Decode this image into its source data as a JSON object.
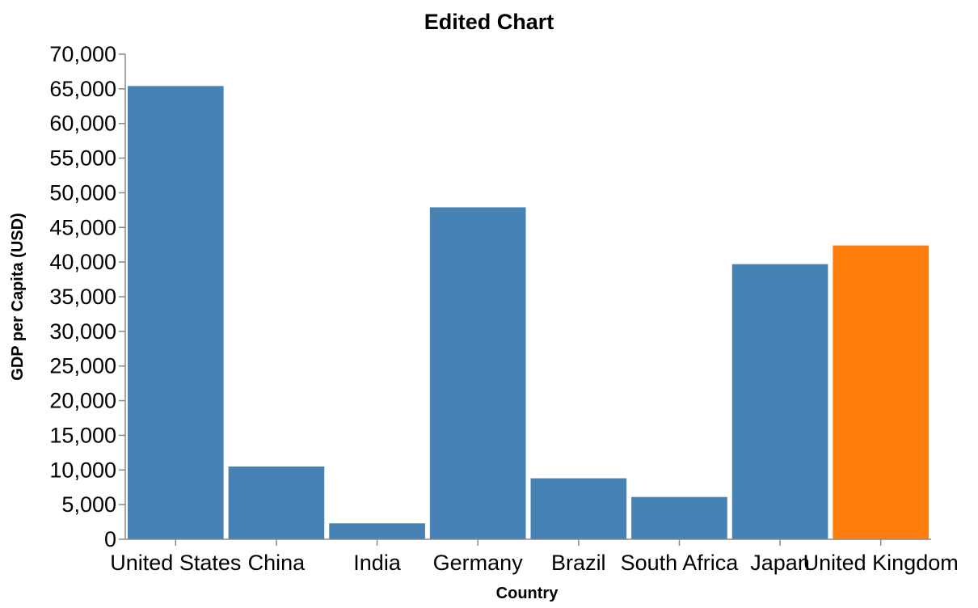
{
  "chart_data": {
    "type": "bar",
    "title": "Edited Chart",
    "xlabel": "Country",
    "ylabel": "GDP per Capita (USD)",
    "ylim": [
      0,
      70000
    ],
    "yticks": [
      0,
      5000,
      10000,
      15000,
      20000,
      25000,
      30000,
      35000,
      40000,
      45000,
      50000,
      55000,
      60000,
      65000,
      70000
    ],
    "ytick_labels": [
      "0",
      "5,000",
      "10,000",
      "15,000",
      "20,000",
      "25,000",
      "30,000",
      "35,000",
      "40,000",
      "45,000",
      "50,000",
      "55,000",
      "60,000",
      "65,000",
      "70,000"
    ],
    "categories": [
      "United States",
      "China",
      "India",
      "Germany",
      "Brazil",
      "South Africa",
      "Japan",
      "United Kingdom"
    ],
    "values": [
      65400,
      10500,
      2300,
      47900,
      8800,
      6100,
      39700,
      42400
    ],
    "colors": [
      "#4682b4",
      "#4682b4",
      "#4682b4",
      "#4682b4",
      "#4682b4",
      "#4682b4",
      "#4682b4",
      "#ff7f0e"
    ],
    "grid": false,
    "legend": "none"
  }
}
